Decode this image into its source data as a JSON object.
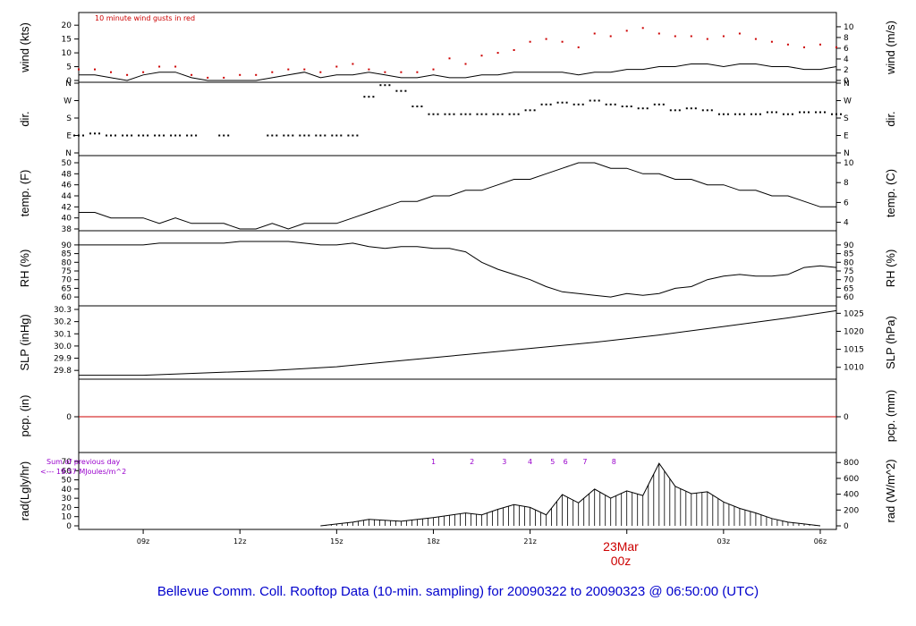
{
  "title": "Bellevue Comm. Coll. Rooftop Data (10-min. sampling) for 20090322  to  20090323 @ 06:50:00  (UTC)",
  "gust_note": "10  minute wind gusts in red",
  "date_marker": {
    "label": "23Mar",
    "sublabel": "00z"
  },
  "x_ticks": [
    "09z",
    "12z",
    "15z",
    "18z",
    "21z",
    "00z",
    "03z",
    "06z"
  ],
  "colors": {
    "wind": "#000000",
    "gust": "#cc0000",
    "pcp": "#cc0000",
    "title": "#0000cc",
    "note": "#9900cc",
    "date": "#cc0000"
  },
  "chart_data": [
    {
      "type": "line",
      "name": "wind",
      "ylabel": "wind (kts)",
      "y2label": "wind (m/s)",
      "ylim": [
        0,
        22
      ],
      "yticks": [
        0,
        5,
        10,
        15,
        20
      ],
      "y2ticks": [
        0,
        2,
        4,
        6,
        8,
        10
      ],
      "x_hours": [
        0,
        0.5,
        1.0,
        1.5,
        2.0,
        2.5,
        3.0,
        3.5,
        4.0,
        4.5,
        5.0,
        5.5,
        6.0,
        6.5,
        7.0,
        7.5,
        8.0,
        8.5,
        9.0,
        9.5,
        10.0,
        10.5,
        11.0,
        11.5,
        12.0,
        12.5,
        13.0,
        13.5,
        14.0,
        14.5,
        15.0,
        15.5,
        16.0,
        16.5,
        17.0,
        17.5,
        18.0,
        18.5,
        19.0,
        19.5,
        20.0,
        20.5,
        21.0,
        21.5,
        22.0,
        22.5,
        23.0,
        23.5
      ],
      "series": [
        {
          "name": "wind",
          "values": [
            2,
            2,
            1,
            0,
            2,
            3,
            3,
            1,
            0,
            0,
            0,
            0,
            1,
            2,
            3,
            1,
            2,
            2,
            3,
            2,
            1,
            1,
            2,
            1,
            1,
            2,
            2,
            3,
            3,
            3,
            3,
            2,
            3,
            3,
            4,
            4,
            5,
            5,
            6,
            6,
            5,
            6,
            6,
            5,
            5,
            4,
            4,
            5
          ]
        },
        {
          "name": "gust",
          "values": [
            4,
            4,
            3,
            2,
            3,
            5,
            5,
            2,
            1,
            1,
            2,
            2,
            3,
            4,
            4,
            3,
            5,
            6,
            4,
            3,
            3,
            3,
            4,
            8,
            6,
            9,
            10,
            11,
            14,
            15,
            14,
            12,
            17,
            16,
            18,
            19,
            17,
            16,
            16,
            15,
            16,
            17,
            15,
            14,
            13,
            12,
            13,
            12
          ]
        }
      ]
    },
    {
      "type": "scatter",
      "name": "direction",
      "ylabel": "dir.",
      "y2label": "dir.",
      "yticks": [
        "N",
        "E",
        "S",
        "W",
        "N"
      ],
      "y_note": "degrees from north",
      "x_hours": [
        0,
        0.5,
        1.0,
        1.5,
        2.0,
        2.5,
        3.0,
        3.5,
        4.0,
        4.5,
        5.0,
        5.5,
        6.0,
        6.5,
        7.0,
        7.5,
        8.0,
        8.5,
        9.0,
        9.5,
        10.0,
        10.5,
        11.0,
        11.5,
        12.0,
        12.5,
        13.0,
        13.5,
        14.0,
        14.5,
        15.0,
        15.5,
        16.0,
        16.5,
        17.0,
        17.5,
        18.0,
        18.5,
        19.0,
        19.5,
        20.0,
        20.5,
        21.0,
        21.5,
        22.0,
        22.5,
        23.0,
        23.5
      ],
      "values": [
        90,
        100,
        90,
        90,
        90,
        90,
        90,
        90,
        null,
        90,
        null,
        null,
        90,
        90,
        90,
        90,
        90,
        90,
        290,
        350,
        320,
        240,
        200,
        200,
        200,
        200,
        200,
        200,
        220,
        250,
        260,
        250,
        270,
        250,
        240,
        230,
        250,
        220,
        230,
        220,
        200,
        200,
        200,
        210,
        200,
        210,
        210,
        200
      ]
    },
    {
      "type": "line",
      "name": "temperature",
      "ylabel": "temp. (F)",
      "y2label": "temp. (C)",
      "ylim": [
        38,
        50
      ],
      "yticks": [
        38,
        40,
        42,
        44,
        46,
        48,
        50
      ],
      "y2ticks": [
        4,
        6,
        8,
        10
      ],
      "x_hours": [
        0,
        0.5,
        1.0,
        1.5,
        2.0,
        2.5,
        3.0,
        3.5,
        4.0,
        4.5,
        5.0,
        5.5,
        6.0,
        6.5,
        7.0,
        7.5,
        8.0,
        8.5,
        9.0,
        9.5,
        10.0,
        10.5,
        11.0,
        11.5,
        12.0,
        12.5,
        13.0,
        13.5,
        14.0,
        14.5,
        15.0,
        15.5,
        16.0,
        16.5,
        17.0,
        17.5,
        18.0,
        18.5,
        19.0,
        19.5,
        20.0,
        20.5,
        21.0,
        21.5,
        22.0,
        22.5,
        23.0,
        23.5
      ],
      "values": [
        41,
        41,
        40,
        40,
        40,
        39,
        40,
        39,
        39,
        39,
        38,
        38,
        39,
        38,
        39,
        39,
        39,
        40,
        41,
        42,
        43,
        43,
        44,
        44,
        45,
        45,
        46,
        47,
        47,
        48,
        49,
        50,
        50,
        49,
        49,
        48,
        48,
        47,
        47,
        46,
        46,
        45,
        45,
        44,
        44,
        43,
        42,
        42
      ]
    },
    {
      "type": "line",
      "name": "relative humidity",
      "ylabel": "RH (%)",
      "y2label": "RH (%)",
      "ylim": [
        58,
        92
      ],
      "yticks": [
        60,
        65,
        70,
        75,
        80,
        85,
        90
      ],
      "y2ticks": [
        60,
        65,
        70,
        75,
        80,
        85,
        90
      ],
      "x_hours": [
        0,
        0.5,
        1.0,
        1.5,
        2.0,
        2.5,
        3.0,
        3.5,
        4.0,
        4.5,
        5.0,
        5.5,
        6.0,
        6.5,
        7.0,
        7.5,
        8.0,
        8.5,
        9.0,
        9.5,
        10.0,
        10.5,
        11.0,
        11.5,
        12.0,
        12.5,
        13.0,
        13.5,
        14.0,
        14.5,
        15.0,
        15.5,
        16.0,
        16.5,
        17.0,
        17.5,
        18.0,
        18.5,
        19.0,
        19.5,
        20.0,
        20.5,
        21.0,
        21.5,
        22.0,
        22.5,
        23.0,
        23.5
      ],
      "values": [
        90,
        90,
        90,
        90,
        90,
        91,
        91,
        91,
        91,
        91,
        92,
        92,
        92,
        92,
        91,
        90,
        90,
        91,
        89,
        88,
        89,
        89,
        88,
        88,
        86,
        80,
        76,
        73,
        70,
        66,
        63,
        62,
        61,
        60,
        62,
        61,
        62,
        65,
        66,
        70,
        72,
        73,
        72,
        72,
        73,
        77,
        78,
        77
      ]
    },
    {
      "type": "line",
      "name": "sea level pressure",
      "ylabel": "SLP (inHg)",
      "y2label": "SLP (hPa)",
      "ylim": [
        29.75,
        30.3
      ],
      "yticks": [
        29.8,
        29.9,
        30.0,
        30.1,
        30.2,
        30.3
      ],
      "y2ticks": [
        1010,
        1015,
        1020,
        1025
      ],
      "x_hours": [
        0,
        2,
        4,
        6,
        8,
        10,
        12,
        14,
        16,
        18,
        20,
        22,
        23.5
      ],
      "values": [
        29.76,
        29.76,
        29.78,
        29.8,
        29.83,
        29.88,
        29.93,
        29.98,
        30.03,
        30.09,
        30.16,
        30.23,
        30.29
      ]
    },
    {
      "type": "line",
      "name": "precipitation",
      "ylabel": "pcp. (in)",
      "y2label": "pcp. (mm)",
      "yticks": [
        0
      ],
      "y2ticks": [
        0
      ],
      "values": [
        0
      ]
    },
    {
      "type": "area",
      "name": "solar radiation",
      "ylabel": "rad(Lgly/hr)",
      "y2label": "rad (W/m^2)",
      "ylim": [
        0,
        70
      ],
      "yticks": [
        0,
        10,
        20,
        30,
        40,
        50,
        60,
        70
      ],
      "y2ticks": [
        0,
        200,
        400,
        600,
        800
      ],
      "sum_note": [
        "Sum of previous day",
        "<--- 19.57 MJoules/m^2"
      ],
      "hour_marks": [
        "1",
        "2",
        "3",
        "4",
        "5",
        "6",
        "7",
        "8"
      ],
      "x_hours": [
        7.5,
        8.5,
        9.0,
        10.0,
        11.0,
        12.0,
        12.5,
        13.0,
        13.5,
        14.0,
        14.5,
        15.0,
        15.5,
        16.0,
        16.5,
        17.0,
        17.5,
        18.0,
        18.5,
        19.0,
        19.5,
        20.0,
        20.5,
        21.0,
        21.5,
        22.0,
        22.5,
        23.0
      ],
      "values": [
        0,
        4,
        7,
        5,
        9,
        14,
        12,
        18,
        23,
        20,
        12,
        34,
        25,
        40,
        30,
        38,
        33,
        68,
        43,
        35,
        37,
        26,
        19,
        14,
        8,
        4,
        2,
        0
      ]
    }
  ]
}
